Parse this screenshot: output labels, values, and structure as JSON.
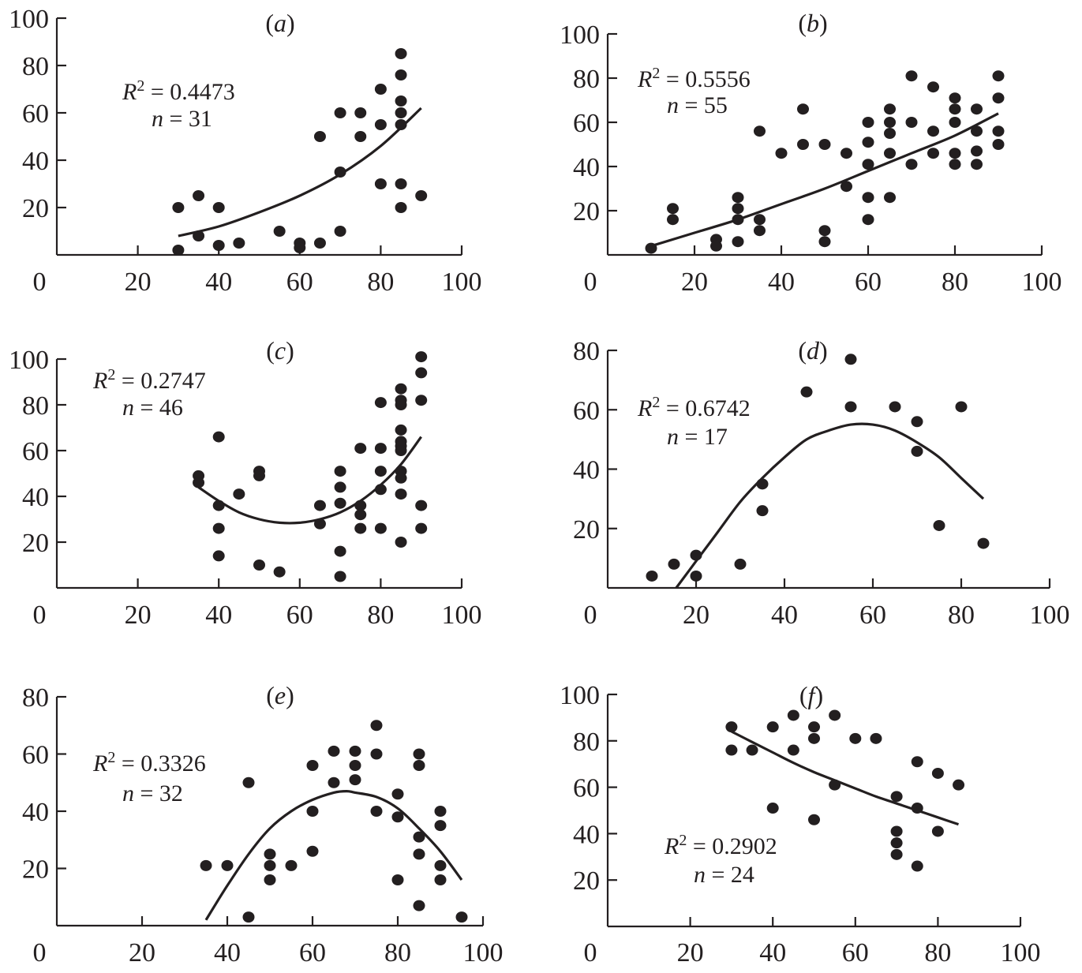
{
  "chart_data": [
    {
      "type": "scatter",
      "title": "(a)",
      "panel_letter": "a",
      "xlabel": "",
      "ylabel": "",
      "xlim": [
        0,
        100
      ],
      "ylim": [
        0,
        100
      ],
      "xticks": [
        0,
        20,
        40,
        60,
        80,
        100
      ],
      "yticks": [
        20,
        40,
        60,
        80,
        100
      ],
      "grid": false,
      "annotation": {
        "r2": "0.4473",
        "n": "31",
        "placement": "upper-left"
      },
      "fit": {
        "type": "polynomial",
        "x_range": [
          30,
          90
        ],
        "y_at": [
          [
            30,
            8
          ],
          [
            40,
            12
          ],
          [
            50,
            18
          ],
          [
            60,
            25
          ],
          [
            70,
            34
          ],
          [
            80,
            46
          ],
          [
            90,
            62
          ]
        ]
      },
      "points": [
        [
          30,
          20
        ],
        [
          30,
          2
        ],
        [
          35,
          25
        ],
        [
          35,
          8
        ],
        [
          40,
          20
        ],
        [
          40,
          4
        ],
        [
          45,
          5
        ],
        [
          55,
          10
        ],
        [
          60,
          5
        ],
        [
          60,
          3
        ],
        [
          65,
          50
        ],
        [
          65,
          5
        ],
        [
          70,
          60
        ],
        [
          70,
          35
        ],
        [
          70,
          10
        ],
        [
          75,
          60
        ],
        [
          75,
          50
        ],
        [
          80,
          70
        ],
        [
          80,
          55
        ],
        [
          80,
          30
        ],
        [
          85,
          85
        ],
        [
          85,
          76
        ],
        [
          85,
          65
        ],
        [
          85,
          60
        ],
        [
          85,
          55
        ],
        [
          85,
          30
        ],
        [
          85,
          20
        ],
        [
          90,
          25
        ]
      ]
    },
    {
      "type": "scatter",
      "title": "(b)",
      "panel_letter": "b",
      "xlabel": "",
      "ylabel": "",
      "xlim": [
        0,
        100
      ],
      "ylim": [
        0,
        100
      ],
      "xticks": [
        0,
        20,
        40,
        60,
        80,
        100
      ],
      "yticks": [
        20,
        40,
        60,
        80,
        100
      ],
      "grid": false,
      "annotation": {
        "r2": "0.5556",
        "n": "55",
        "placement": "upper-left"
      },
      "fit": {
        "type": "polynomial",
        "x_range": [
          10,
          90
        ],
        "y_at": [
          [
            10,
            4
          ],
          [
            20,
            10
          ],
          [
            30,
            16
          ],
          [
            40,
            23
          ],
          [
            50,
            30
          ],
          [
            60,
            38
          ],
          [
            70,
            46
          ],
          [
            80,
            54
          ],
          [
            90,
            64
          ]
        ]
      },
      "points": [
        [
          10,
          3
        ],
        [
          15,
          21
        ],
        [
          15,
          16
        ],
        [
          25,
          7
        ],
        [
          25,
          4
        ],
        [
          30,
          26
        ],
        [
          30,
          21
        ],
        [
          30,
          16
        ],
        [
          30,
          6
        ],
        [
          35,
          56
        ],
        [
          35,
          16
        ],
        [
          35,
          11
        ],
        [
          40,
          46
        ],
        [
          45,
          66
        ],
        [
          45,
          50
        ],
        [
          50,
          50
        ],
        [
          50,
          11
        ],
        [
          50,
          6
        ],
        [
          55,
          46
        ],
        [
          55,
          31
        ],
        [
          60,
          60
        ],
        [
          60,
          51
        ],
        [
          60,
          41
        ],
        [
          60,
          26
        ],
        [
          60,
          16
        ],
        [
          65,
          66
        ],
        [
          65,
          60
        ],
        [
          65,
          55
        ],
        [
          65,
          46
        ],
        [
          65,
          26
        ],
        [
          70,
          81
        ],
        [
          70,
          60
        ],
        [
          70,
          41
        ],
        [
          75,
          76
        ],
        [
          75,
          56
        ],
        [
          75,
          46
        ],
        [
          80,
          71
        ],
        [
          80,
          66
        ],
        [
          80,
          60
        ],
        [
          80,
          46
        ],
        [
          80,
          41
        ],
        [
          85,
          66
        ],
        [
          85,
          56
        ],
        [
          85,
          47
        ],
        [
          85,
          41
        ],
        [
          90,
          81
        ],
        [
          90,
          71
        ],
        [
          90,
          56
        ],
        [
          90,
          50
        ]
      ]
    },
    {
      "type": "scatter",
      "title": "(c)",
      "panel_letter": "c",
      "xlabel": "",
      "ylabel": "",
      "xlim": [
        0,
        100
      ],
      "ylim": [
        0,
        100
      ],
      "xticks": [
        0,
        20,
        40,
        60,
        80,
        100
      ],
      "yticks": [
        20,
        40,
        60,
        80,
        100
      ],
      "grid": false,
      "annotation": {
        "r2": "0.2747",
        "n": "46",
        "placement": "upper-left"
      },
      "fit": {
        "type": "polynomial",
        "x_range": [
          35,
          90
        ],
        "y_at": [
          [
            35,
            44
          ],
          [
            40,
            38
          ],
          [
            45,
            33
          ],
          [
            50,
            30
          ],
          [
            55,
            28.5
          ],
          [
            60,
            28.5
          ],
          [
            65,
            30
          ],
          [
            70,
            33
          ],
          [
            75,
            38
          ],
          [
            80,
            45
          ],
          [
            85,
            54
          ],
          [
            90,
            66
          ]
        ]
      },
      "points": [
        [
          35,
          49
        ],
        [
          35,
          46
        ],
        [
          40,
          66
        ],
        [
          40,
          36
        ],
        [
          40,
          26
        ],
        [
          40,
          14
        ],
        [
          45,
          41
        ],
        [
          50,
          51
        ],
        [
          50,
          49
        ],
        [
          50,
          10
        ],
        [
          55,
          7
        ],
        [
          65,
          36
        ],
        [
          65,
          28
        ],
        [
          70,
          51
        ],
        [
          70,
          44
        ],
        [
          70,
          37
        ],
        [
          70,
          16
        ],
        [
          70,
          5
        ],
        [
          75,
          61
        ],
        [
          75,
          36
        ],
        [
          75,
          32
        ],
        [
          75,
          26
        ],
        [
          80,
          81
        ],
        [
          80,
          61
        ],
        [
          80,
          51
        ],
        [
          80,
          43
        ],
        [
          80,
          26
        ],
        [
          85,
          87
        ],
        [
          85,
          82
        ],
        [
          85,
          80
        ],
        [
          85,
          69
        ],
        [
          85,
          64
        ],
        [
          85,
          62
        ],
        [
          85,
          60
        ],
        [
          85,
          51
        ],
        [
          85,
          48
        ],
        [
          85,
          41
        ],
        [
          85,
          20
        ],
        [
          90,
          101
        ],
        [
          90,
          94
        ],
        [
          90,
          82
        ],
        [
          90,
          36
        ],
        [
          90,
          26
        ]
      ]
    },
    {
      "type": "scatter",
      "title": "(d)",
      "panel_letter": "d",
      "xlabel": "",
      "ylabel": "",
      "xlim": [
        0,
        100
      ],
      "ylim": [
        0,
        80
      ],
      "xticks": [
        0,
        20,
        40,
        60,
        80,
        100
      ],
      "yticks": [
        20,
        40,
        60,
        80
      ],
      "grid": false,
      "annotation": {
        "r2": "0.6742",
        "n": "17",
        "placement": "upper-left"
      },
      "fit": {
        "type": "polynomial",
        "x_range": [
          15.5,
          85
        ],
        "y_at": [
          [
            15.5,
            0
          ],
          [
            20,
            9
          ],
          [
            25,
            19
          ],
          [
            30,
            29
          ],
          [
            35,
            37
          ],
          [
            40,
            44
          ],
          [
            45,
            50
          ],
          [
            50,
            53
          ],
          [
            55,
            55
          ],
          [
            60,
            55
          ],
          [
            65,
            53
          ],
          [
            70,
            49
          ],
          [
            75,
            44
          ],
          [
            80,
            37
          ],
          [
            85,
            30
          ]
        ]
      },
      "points": [
        [
          10,
          4
        ],
        [
          15,
          8
        ],
        [
          20,
          11
        ],
        [
          20,
          4
        ],
        [
          30,
          8
        ],
        [
          35,
          35
        ],
        [
          35,
          26
        ],
        [
          45,
          66
        ],
        [
          55,
          77
        ],
        [
          55,
          61
        ],
        [
          65,
          61
        ],
        [
          70,
          56
        ],
        [
          70,
          46
        ],
        [
          75,
          21
        ],
        [
          80,
          61
        ],
        [
          85,
          15
        ]
      ]
    },
    {
      "type": "scatter",
      "title": "(e)",
      "panel_letter": "e",
      "xlabel": "",
      "ylabel": "",
      "xlim": [
        0,
        100
      ],
      "ylim": [
        0,
        80
      ],
      "xticks": [
        0,
        20,
        40,
        60,
        80,
        100
      ],
      "yticks": [
        20,
        40,
        60,
        80
      ],
      "grid": false,
      "annotation": {
        "r2": "0.3326",
        "n": "32",
        "placement": "upper-left"
      },
      "fit": {
        "type": "polynomial",
        "x_range": [
          35,
          95
        ],
        "y_at": [
          [
            35,
            2
          ],
          [
            40,
            14
          ],
          [
            45,
            25
          ],
          [
            50,
            34
          ],
          [
            55,
            40
          ],
          [
            60,
            44
          ],
          [
            65,
            46.5
          ],
          [
            68,
            47
          ],
          [
            70,
            46.5
          ],
          [
            75,
            45
          ],
          [
            80,
            41
          ],
          [
            85,
            34
          ],
          [
            90,
            26
          ],
          [
            95,
            16
          ]
        ]
      },
      "points": [
        [
          35,
          21
        ],
        [
          40,
          21
        ],
        [
          45,
          50
        ],
        [
          45,
          3
        ],
        [
          50,
          25
        ],
        [
          50,
          21
        ],
        [
          50,
          16
        ],
        [
          55,
          21
        ],
        [
          60,
          56
        ],
        [
          60,
          40
        ],
        [
          60,
          26
        ],
        [
          65,
          61
        ],
        [
          65,
          50
        ],
        [
          70,
          61
        ],
        [
          70,
          56
        ],
        [
          70,
          51
        ],
        [
          75,
          70
        ],
        [
          75,
          60
        ],
        [
          75,
          40
        ],
        [
          80,
          46
        ],
        [
          80,
          38
        ],
        [
          80,
          16
        ],
        [
          85,
          60
        ],
        [
          85,
          56
        ],
        [
          85,
          31
        ],
        [
          85,
          25
        ],
        [
          85,
          7
        ],
        [
          90,
          40
        ],
        [
          90,
          35
        ],
        [
          90,
          21
        ],
        [
          90,
          16
        ],
        [
          95,
          3
        ]
      ]
    },
    {
      "type": "scatter",
      "title": "(f)",
      "panel_letter": "f",
      "xlabel": "",
      "ylabel": "",
      "xlim": [
        0,
        100
      ],
      "ylim": [
        0,
        100
      ],
      "xticks": [
        0,
        20,
        40,
        60,
        80,
        100
      ],
      "yticks": [
        20,
        40,
        60,
        80,
        100
      ],
      "grid": false,
      "annotation": {
        "r2": "0.2902",
        "n": "24",
        "placement": "lower-left"
      },
      "fit": {
        "type": "polynomial",
        "x_range": [
          30,
          85
        ],
        "y_at": [
          [
            30,
            84
          ],
          [
            35,
            79.5
          ],
          [
            40,
            75
          ],
          [
            45,
            70.5
          ],
          [
            50,
            66.5
          ],
          [
            55,
            63
          ],
          [
            60,
            59.5
          ],
          [
            65,
            56
          ],
          [
            70,
            53
          ],
          [
            75,
            50
          ],
          [
            80,
            47
          ],
          [
            85,
            44
          ]
        ]
      },
      "points": [
        [
          30,
          86
        ],
        [
          30,
          76
        ],
        [
          35,
          76
        ],
        [
          40,
          86
        ],
        [
          40,
          51
        ],
        [
          45,
          91
        ],
        [
          45,
          76
        ],
        [
          50,
          86
        ],
        [
          50,
          81
        ],
        [
          50,
          46
        ],
        [
          55,
          91
        ],
        [
          55,
          61
        ],
        [
          60,
          81
        ],
        [
          65,
          81
        ],
        [
          70,
          56
        ],
        [
          70,
          41
        ],
        [
          70,
          36
        ],
        [
          70,
          31
        ],
        [
          75,
          71
        ],
        [
          75,
          51
        ],
        [
          75,
          26
        ],
        [
          80,
          66
        ],
        [
          80,
          41
        ],
        [
          85,
          61
        ]
      ]
    }
  ]
}
